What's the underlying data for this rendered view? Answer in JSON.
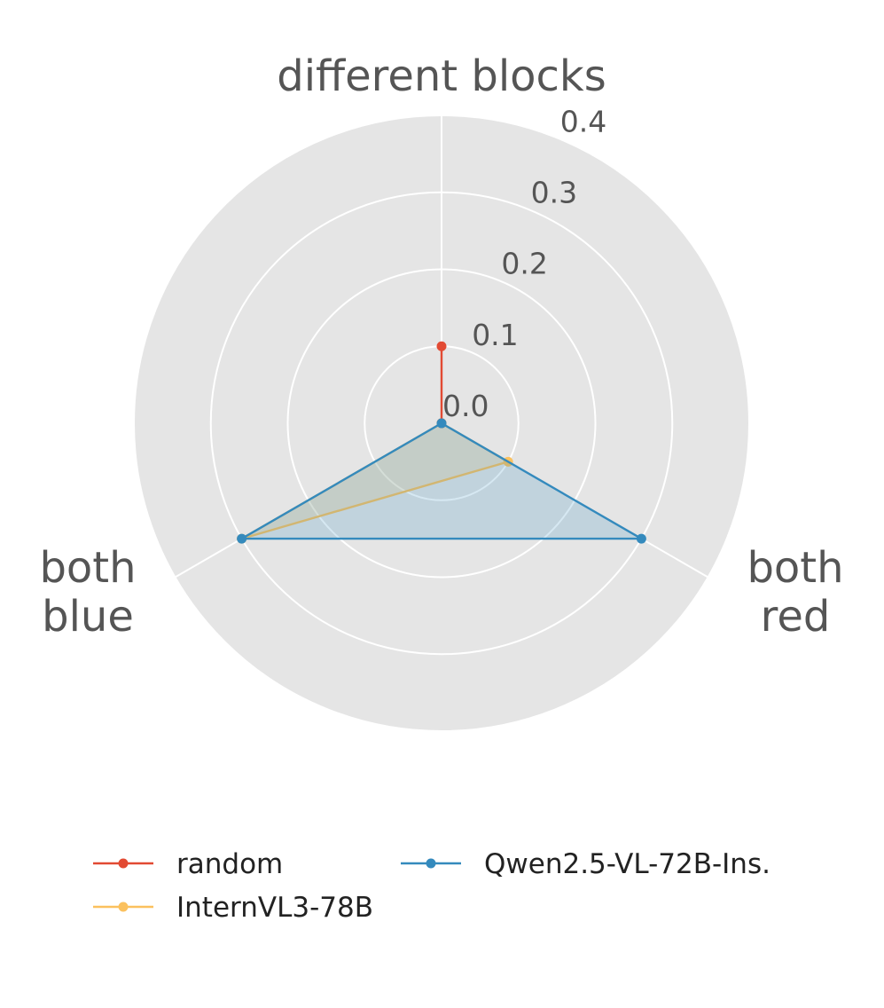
{
  "chart_data": {
    "type": "radar",
    "axes": [
      {
        "key": "different_blocks",
        "lines": [
          "different blocks"
        ]
      },
      {
        "key": "both_red",
        "lines": [
          "both",
          "red"
        ]
      },
      {
        "key": "both_blue",
        "lines": [
          "both",
          "blue"
        ]
      }
    ],
    "rlim": [
      0,
      0.4
    ],
    "rticks": [
      "0.0",
      "0.1",
      "0.2",
      "0.3",
      "0.4"
    ],
    "rtick_values": [
      0.0,
      0.1,
      0.2,
      0.3,
      0.4
    ],
    "grid": true,
    "legend_position": "bottom",
    "series": [
      {
        "name": "random",
        "color": "#E24A33",
        "values": [
          0.1,
          0.0,
          0.0
        ],
        "fill": false
      },
      {
        "name": "InternVL3-78B",
        "color": "#FBC15E",
        "values": [
          0.0,
          0.1,
          0.3
        ],
        "fill": true
      },
      {
        "name": "Qwen2.5-VL-72B-Ins.",
        "color": "#348ABD",
        "values": [
          0.0,
          0.3,
          0.3
        ],
        "fill": true
      }
    ]
  }
}
